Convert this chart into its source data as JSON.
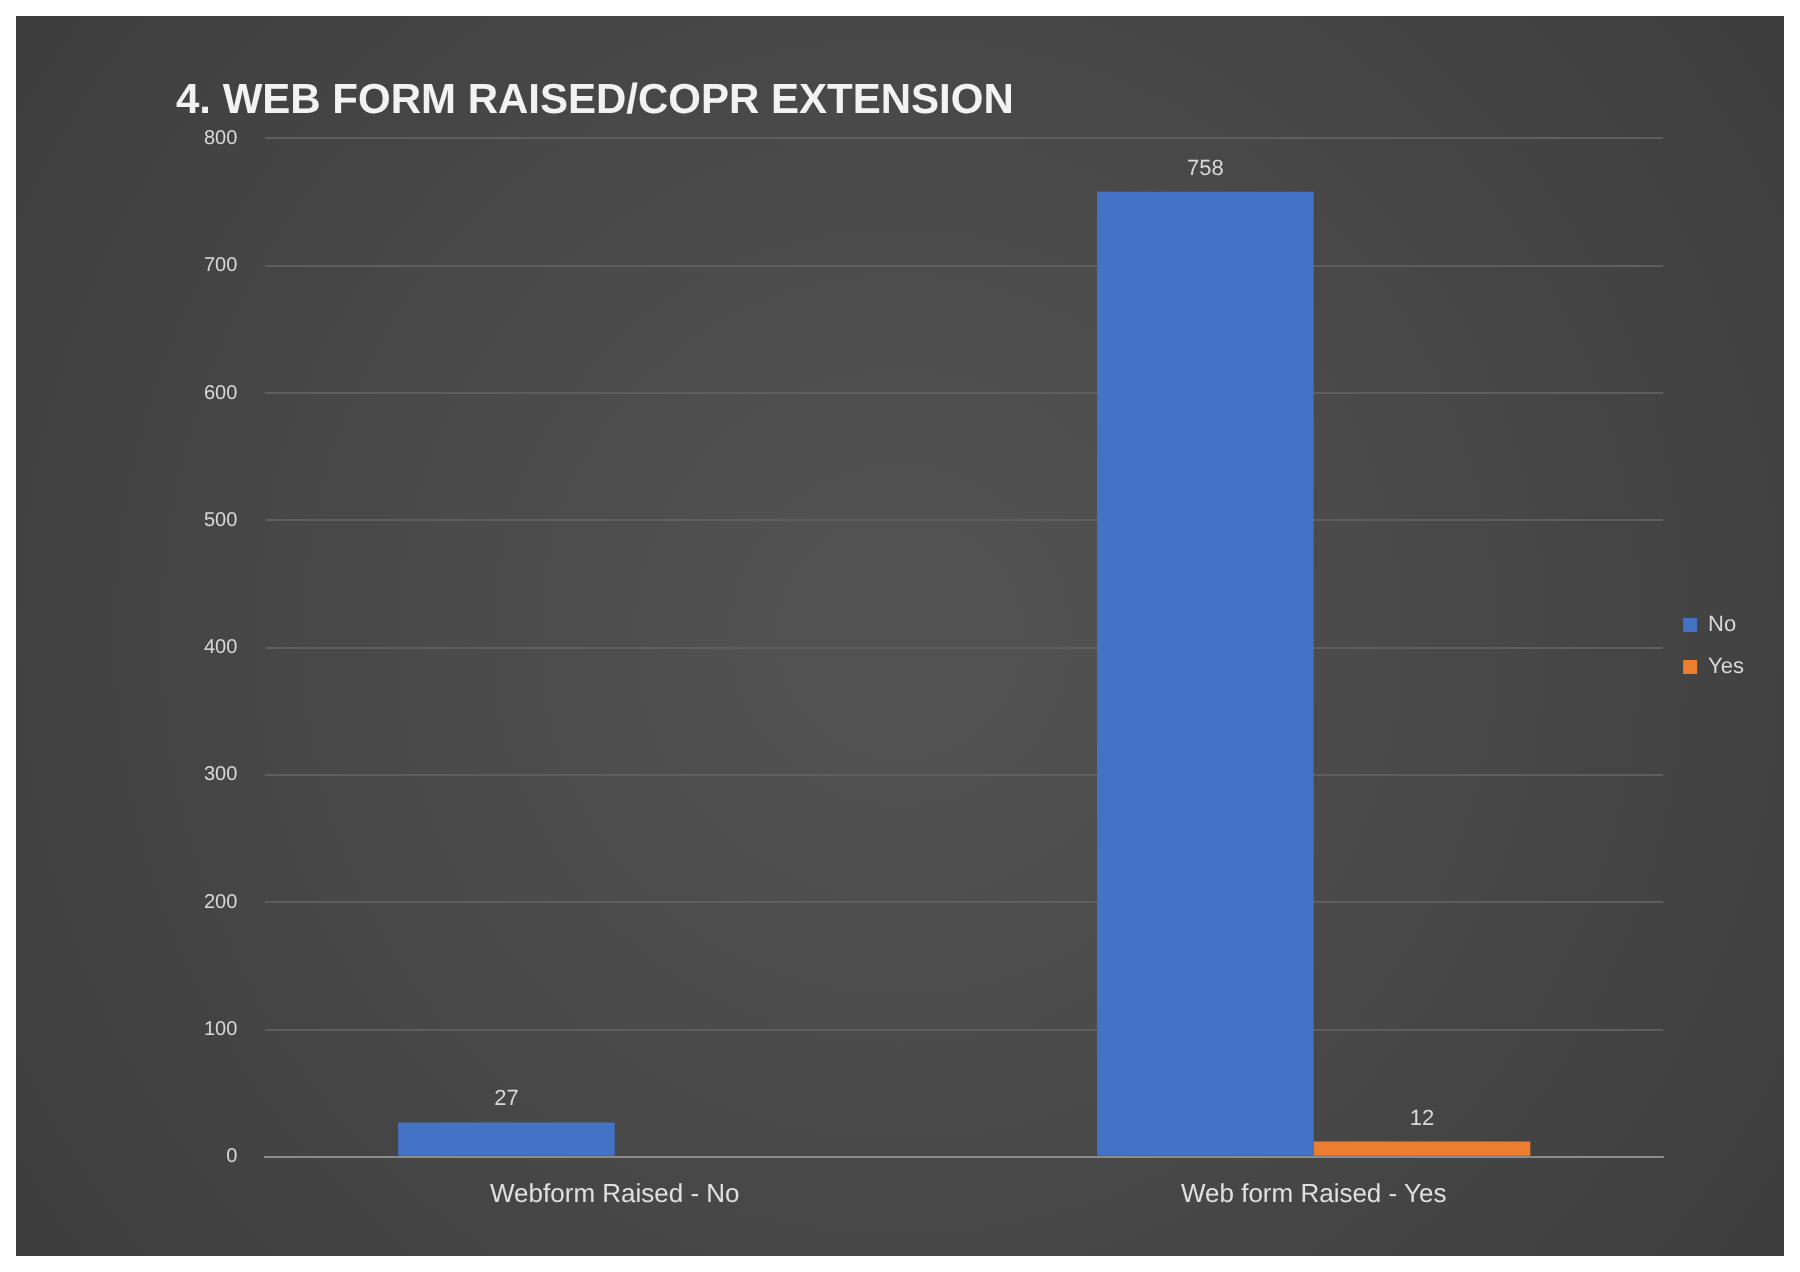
{
  "chart_data": {
    "type": "bar",
    "title": "4. WEB FORM RAISED/COPR EXTENSION",
    "categories": [
      "Webform Raised - No",
      "Web form Raised - Yes"
    ],
    "series": [
      {
        "name": "No",
        "color": "#4472c4",
        "values": [
          27,
          758
        ]
      },
      {
        "name": "Yes",
        "color": "#ed7d31",
        "values": [
          null,
          12
        ]
      }
    ],
    "ylim": [
      0,
      800
    ],
    "yticks": [
      0,
      100,
      200,
      300,
      400,
      500,
      600,
      700,
      800
    ],
    "grid": "y",
    "legend": "right",
    "data_labels": true
  }
}
